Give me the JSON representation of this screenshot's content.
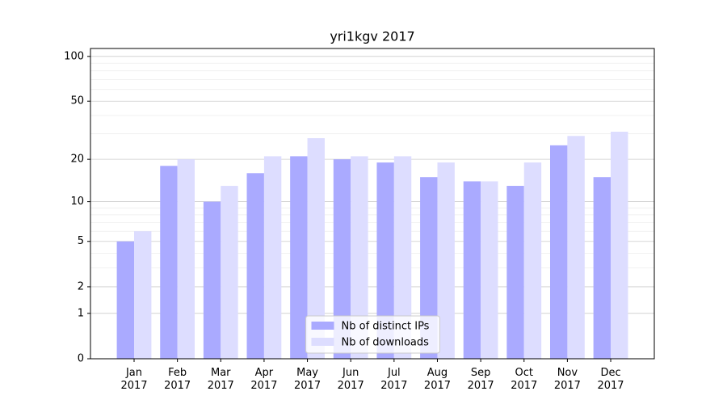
{
  "chart_data": {
    "type": "bar",
    "title": "yri1kgv 2017",
    "categories": [
      "Jan\n2017",
      "Feb\n2017",
      "Mar\n2017",
      "Apr\n2017",
      "May\n2017",
      "Jun\n2017",
      "Jul\n2017",
      "Aug\n2017",
      "Sep\n2017",
      "Oct\n2017",
      "Nov\n2017",
      "Dec\n2017"
    ],
    "series": [
      {
        "name": "Nb of distinct IPs",
        "color": "#aaaaff",
        "values": [
          5,
          18,
          10,
          16,
          21,
          20,
          19,
          15,
          14,
          13,
          25,
          15
        ]
      },
      {
        "name": "Nb of downloads",
        "color": "#ddddff",
        "values": [
          6,
          20,
          13,
          21,
          28,
          21,
          21,
          19,
          14,
          19,
          29,
          31
        ]
      }
    ],
    "yscale": "log1p",
    "ylim": [
      0,
      113
    ],
    "yticks": [
      0,
      1,
      2,
      5,
      10,
      20,
      50,
      100
    ],
    "yminorticks": [
      3,
      4,
      6,
      7,
      8,
      9,
      30,
      40,
      60,
      70,
      80,
      90
    ],
    "grid": true,
    "legend": "lower center"
  }
}
